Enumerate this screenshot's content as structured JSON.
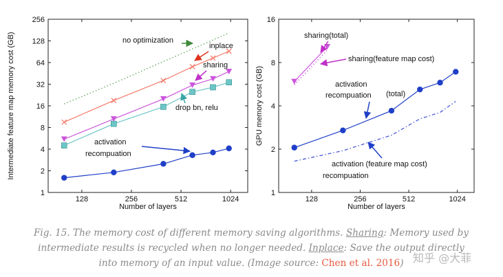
{
  "caption": {
    "fig": "Fig. 15.",
    "t1": " The memory cost of different memory saving algorithms. ",
    "sharing": "Sharing",
    "t2": ": Memory used by intermediate results is recycled when no longer needed. ",
    "inplace": "Inplace",
    "t3": ": Save the output directly into memory of an input value. (Image source: ",
    "cite": "Chen et al. 2016",
    "t4": ")"
  },
  "watermark": "知乎 @大菲",
  "chart_data": [
    {
      "type": "line",
      "xlabel": "Number of layers",
      "ylabel": "Intermediate feature map memory cost (GB)",
      "xscale": "log2",
      "yscale": "log2",
      "xlim": [
        80,
        1300
      ],
      "ylim": [
        1,
        256
      ],
      "xticks": [
        128,
        256,
        512,
        1024
      ],
      "yticks": [
        1,
        2,
        4,
        8,
        16,
        32,
        64,
        128,
        256
      ],
      "series": [
        {
          "name": "no optimization",
          "style": "dotted",
          "marker": "none",
          "color": "#5fa55a",
          "x": [
            100,
            200,
            400,
            600,
            800,
            1000
          ],
          "y": [
            17,
            33,
            66,
            99,
            132,
            165
          ]
        },
        {
          "name": "inplace",
          "style": "solid",
          "marker": "x",
          "color": "#f47a6a",
          "x": [
            100,
            200,
            400,
            600,
            800,
            1000
          ],
          "y": [
            9.5,
            19,
            36,
            56,
            74,
            92
          ]
        },
        {
          "name": "sharing",
          "style": "solid",
          "marker": "triangle-down",
          "color": "#cc55dd",
          "x": [
            100,
            200,
            400,
            600,
            800,
            1000
          ],
          "y": [
            5.5,
            10.5,
            20,
            31,
            38,
            48
          ]
        },
        {
          "name": "drop bn, relu",
          "style": "solid",
          "marker": "square",
          "color": "#6cc6c6",
          "x": [
            100,
            200,
            400,
            600,
            800,
            1000
          ],
          "y": [
            4.5,
            9,
            15.5,
            25,
            29,
            34
          ]
        },
        {
          "name": "activation recompuation",
          "style": "solid",
          "marker": "circle",
          "color": "#1f3fc8",
          "x": [
            100,
            200,
            400,
            600,
            800,
            1000
          ],
          "y": [
            1.6,
            1.9,
            2.5,
            3.3,
            3.6,
            4.1
          ]
        }
      ],
      "annotations": [
        {
          "text": "no optimization",
          "series": "no optimization"
        },
        {
          "text": "inplace",
          "series": "inplace"
        },
        {
          "text": "sharing",
          "series": "sharing"
        },
        {
          "text": "drop bn, relu",
          "series": "drop bn, relu"
        },
        {
          "text": "activation",
          "series": "activation recompuation"
        },
        {
          "text": "recompuation",
          "series": "activation recompuation"
        }
      ]
    },
    {
      "type": "line",
      "xlabel": "Number of layers",
      "ylabel": "GPU memory cost (GB)",
      "xscale": "log2",
      "yscale": "log2",
      "xlim": [
        80,
        1300
      ],
      "ylim": [
        1,
        16
      ],
      "xticks": [
        128,
        256,
        512,
        1024
      ],
      "yticks": [
        1,
        2,
        4,
        8,
        16
      ],
      "series": [
        {
          "name": "sharing (total)",
          "style": "solid",
          "marker": "triangle-down",
          "color": "#cc55dd",
          "x": [
            100,
            160
          ],
          "y": [
            5.9,
            10.3
          ]
        },
        {
          "name": "sharing (feature map cost)",
          "style": "dotted",
          "marker": "none",
          "color": "#cc55dd",
          "x": [
            100,
            160
          ],
          "y": [
            5.6,
            9.8
          ]
        },
        {
          "name": "activation recompuation (total)",
          "style": "solid",
          "marker": "circle",
          "color": "#1f3fc8",
          "x": [
            100,
            200,
            400,
            600,
            800,
            1000
          ],
          "y": [
            2.05,
            2.7,
            3.7,
            5.2,
            5.8,
            6.9
          ]
        },
        {
          "name": "activation recompuation (feature map cost)",
          "style": "dashdot",
          "marker": "none",
          "color": "#4a5ad8",
          "x": [
            100,
            200,
            400,
            600,
            800,
            1000
          ],
          "y": [
            1.65,
            1.95,
            2.5,
            3.25,
            3.6,
            4.3
          ]
        }
      ],
      "annotations": [
        {
          "text": "sharing(total)",
          "series": "sharing (total)"
        },
        {
          "text": "sharing(feature map cost)",
          "series": "sharing (feature map cost)"
        },
        {
          "text": "activation",
          "series": "activation recompuation (total)"
        },
        {
          "text": "recompuation",
          "series": "activation recompuation (total)"
        },
        {
          "text": "(total)",
          "series": "activation recompuation (total)"
        },
        {
          "text": "activation (feature map cost)",
          "series": "activation recompuation (feature map cost)"
        },
        {
          "text": "recompuation",
          "series": "activation recompuation (feature map cost)"
        }
      ]
    }
  ]
}
